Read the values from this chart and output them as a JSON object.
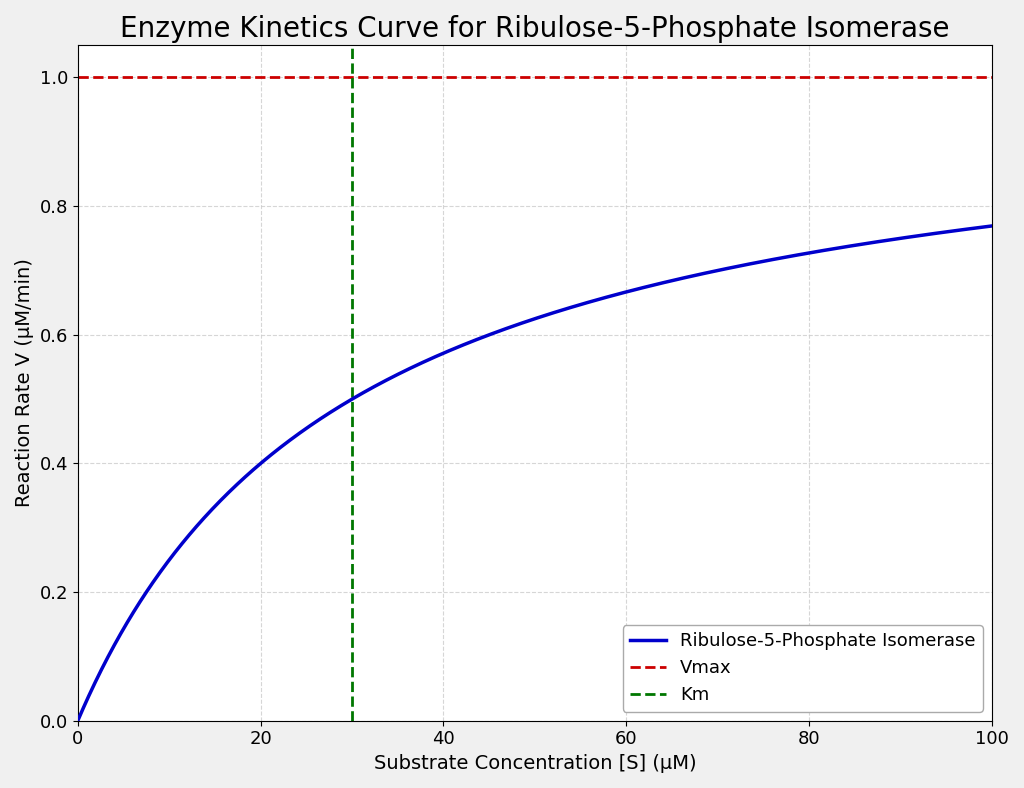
{
  "title": "Enzyme Kinetics Curve for Ribulose-5-Phosphate Isomerase",
  "xlabel": "Substrate Concentration [S] (μM)",
  "ylabel": "Reaction Rate V (μM/min)",
  "Vmax": 1.0,
  "Km": 30.0,
  "S_min": 0.0,
  "S_max": 100.0,
  "xlim": [
    0,
    100
  ],
  "ylim": [
    0.0,
    1.05
  ],
  "yticks": [
    0.0,
    0.2,
    0.4,
    0.6,
    0.8,
    1.0
  ],
  "xticks": [
    0,
    20,
    40,
    60,
    80,
    100
  ],
  "curve_color": "#0000cc",
  "vmax_line_color": "#cc0000",
  "km_line_color": "#007700",
  "curve_linewidth": 2.5,
  "dashed_linewidth": 2.0,
  "legend_labels": [
    "Ribulose-5-Phosphate Isomerase",
    "Vmax",
    "Km"
  ],
  "title_fontsize": 20,
  "label_fontsize": 14,
  "tick_fontsize": 13,
  "legend_fontsize": 13,
  "figure_facecolor": "#f0f0f0",
  "axes_facecolor": "#ffffff",
  "grid_color": "#cccccc",
  "grid_linestyle": "--",
  "grid_alpha": 0.8
}
